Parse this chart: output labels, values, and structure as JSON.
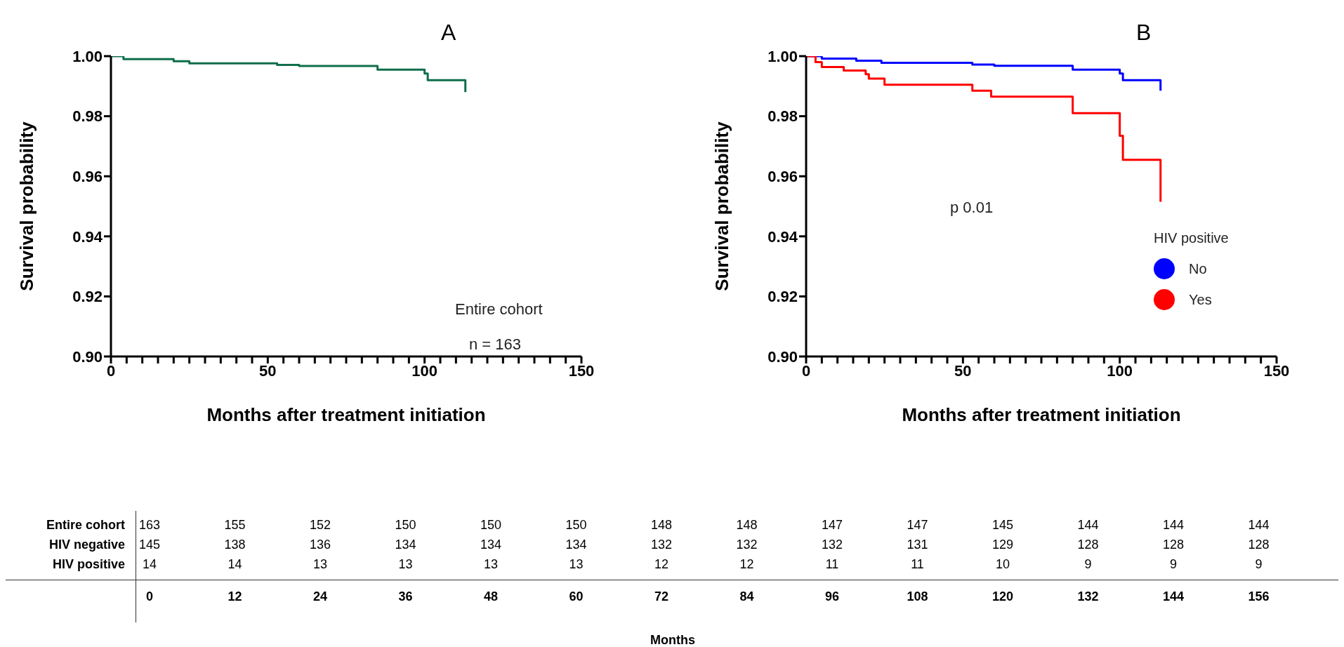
{
  "chart_data": [
    {
      "type": "step",
      "title": "A",
      "xlabel": "Months after treatment initiation",
      "ylabel": "Survival probability",
      "xlim": [
        0,
        150
      ],
      "ylim": [
        0.9,
        1.0
      ],
      "xticks": [
        0,
        {
          "value": 5,
          "label": null
        },
        {
          "value": 10,
          "label": null
        },
        {
          "value": 15,
          "label": null
        },
        {
          "value": 20,
          "label": null
        },
        {
          "value": 25,
          "label": null
        },
        {
          "value": 30,
          "label": null
        },
        {
          "value": 35,
          "label": null
        },
        {
          "value": 40,
          "label": null
        },
        {
          "value": 45,
          "label": null
        },
        50,
        {
          "value": 55,
          "label": null
        },
        {
          "value": 60,
          "label": null
        },
        {
          "value": 65,
          "label": null
        },
        {
          "value": 70,
          "label": null
        },
        {
          "value": 75,
          "label": null
        },
        {
          "value": 80,
          "label": null
        },
        {
          "value": 85,
          "label": null
        },
        {
          "value": 90,
          "label": null
        },
        {
          "value": 95,
          "label": null
        },
        100,
        {
          "value": 105,
          "label": null
        },
        {
          "value": 110,
          "label": null
        },
        {
          "value": 115,
          "label": null
        },
        {
          "value": 120,
          "label": null
        },
        {
          "value": 125,
          "label": null
        },
        {
          "value": 130,
          "label": null
        },
        {
          "value": 135,
          "label": null
        },
        {
          "value": 140,
          "label": null
        },
        {
          "value": 145,
          "label": null
        },
        150
      ],
      "yticks": [
        {
          "value": 0.9,
          "label": "0.90"
        },
        {
          "value": 0.92,
          "label": "0.92"
        },
        {
          "value": 0.94,
          "label": "0.94"
        },
        {
          "value": 0.96,
          "label": "0.96"
        },
        {
          "value": 0.98,
          "label": "0.98"
        },
        {
          "value": 1.0,
          "label": "1.00"
        }
      ],
      "annotations": [
        "Entire cohort",
        "n = 163"
      ],
      "series": [
        {
          "color": "#0f6e4a",
          "x": [
            0,
            4,
            20,
            25,
            53,
            60,
            85,
            100,
            101,
            113,
            113
          ],
          "values": [
            1.0,
            0.999,
            0.9983,
            0.9976,
            0.9971,
            0.9967,
            0.9955,
            0.9942,
            0.992,
            0.992,
            0.988
          ]
        }
      ]
    },
    {
      "type": "step",
      "title": "B",
      "xlabel": "Months after treatment initiation",
      "ylabel": "Survival probability",
      "xlim": [
        0,
        150
      ],
      "ylim": [
        0.9,
        1.0
      ],
      "xticks": [
        0,
        {
          "value": 5,
          "label": null
        },
        {
          "value": 10,
          "label": null
        },
        {
          "value": 15,
          "label": null
        },
        {
          "value": 20,
          "label": null
        },
        {
          "value": 25,
          "label": null
        },
        {
          "value": 30,
          "label": null
        },
        {
          "value": 35,
          "label": null
        },
        {
          "value": 40,
          "label": null
        },
        {
          "value": 45,
          "label": null
        },
        50,
        {
          "value": 55,
          "label": null
        },
        {
          "value": 60,
          "label": null
        },
        {
          "value": 65,
          "label": null
        },
        {
          "value": 70,
          "label": null
        },
        {
          "value": 75,
          "label": null
        },
        {
          "value": 80,
          "label": null
        },
        {
          "value": 85,
          "label": null
        },
        {
          "value": 90,
          "label": null
        },
        {
          "value": 95,
          "label": null
        },
        100,
        {
          "value": 105,
          "label": null
        },
        {
          "value": 110,
          "label": null
        },
        {
          "value": 115,
          "label": null
        },
        {
          "value": 120,
          "label": null
        },
        {
          "value": 125,
          "label": null
        },
        {
          "value": 130,
          "label": null
        },
        {
          "value": 135,
          "label": null
        },
        {
          "value": 140,
          "label": null
        },
        {
          "value": 145,
          "label": null
        },
        150
      ],
      "yticks": [
        {
          "value": 0.9,
          "label": "0.90"
        },
        {
          "value": 0.92,
          "label": "0.92"
        },
        {
          "value": 0.94,
          "label": "0.94"
        },
        {
          "value": 0.96,
          "label": "0.96"
        },
        {
          "value": 0.98,
          "label": "0.98"
        },
        {
          "value": 1.0,
          "label": "1.00"
        }
      ],
      "annotations": [
        "p 0.01"
      ],
      "legend": "right",
      "legend_title": "HIV positive",
      "series": [
        {
          "name": "No",
          "color": "#0000ff",
          "x": [
            0,
            5,
            16,
            24,
            53,
            60,
            85,
            100,
            101,
            113,
            113
          ],
          "values": [
            1.0,
            0.9992,
            0.9985,
            0.9978,
            0.9972,
            0.9968,
            0.9955,
            0.9942,
            0.992,
            0.992,
            0.9885
          ]
        },
        {
          "name": "Yes",
          "color": "#ff0000",
          "x": [
            0,
            3,
            5,
            12,
            19,
            20,
            25,
            53,
            59,
            85,
            100,
            101,
            113,
            113
          ],
          "values": [
            1.0,
            0.998,
            0.9964,
            0.9952,
            0.994,
            0.9925,
            0.9905,
            0.9885,
            0.9865,
            0.981,
            0.9735,
            0.9655,
            0.9655,
            0.9515
          ]
        }
      ]
    },
    {
      "type": "heatmap",
      "xlabel": "Months",
      "data_labels": true,
      "categories": [
        "0",
        "12",
        "24",
        "36",
        "48",
        "60",
        "72",
        "84",
        "96",
        "108",
        "120",
        "132",
        "144",
        "156"
      ],
      "y_categories": [
        "Entire cohort",
        "HIV negative",
        "HIV positive"
      ],
      "cells": [
        [
          163,
          155,
          152,
          150,
          150,
          150,
          148,
          148,
          147,
          147,
          145,
          144,
          144,
          144
        ],
        [
          145,
          138,
          136,
          134,
          134,
          134,
          132,
          132,
          132,
          131,
          129,
          128,
          128,
          128
        ],
        [
          14,
          14,
          13,
          13,
          13,
          13,
          12,
          12,
          11,
          11,
          10,
          9,
          9,
          9
        ]
      ]
    }
  ]
}
